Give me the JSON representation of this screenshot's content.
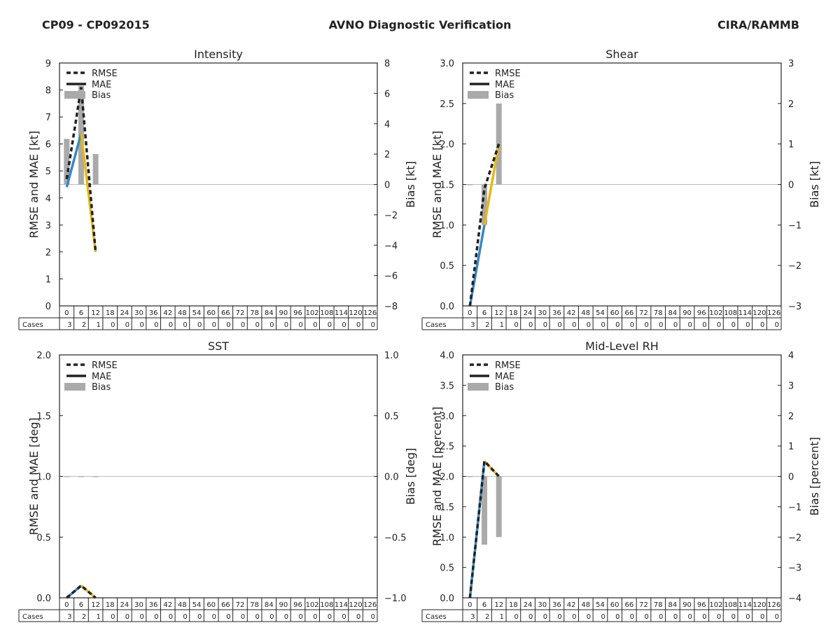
{
  "header": {
    "left": "CP09 - CP092015",
    "center": "AVNO Diagnostic Verification",
    "right": "CIRA/RAMMB"
  },
  "colors": {
    "rmse": "#222222",
    "mae_early": "#3a87c4",
    "mae_late": "#e3b919",
    "bias": "#aaaaaa",
    "zero_line": "#bbbbbb",
    "axis": "#222222"
  },
  "chart_data": [
    {
      "type": "line",
      "title": "Intensity",
      "ylabel": "RMSE and MAE [kt]",
      "y2label": "Bias [kt]",
      "ylim": [
        0,
        9
      ],
      "yticks": [
        "0",
        "1",
        "2",
        "3",
        "4",
        "5",
        "6",
        "7",
        "8",
        "9"
      ],
      "y2lim": [
        -8,
        8
      ],
      "y2ticks": [
        "−8",
        "−6",
        "−4",
        "−2",
        "0",
        "2",
        "4",
        "6",
        "8"
      ],
      "legend": [
        "RMSE",
        "MAE",
        "Bias"
      ],
      "legend_position": "upper-left",
      "x": [
        0,
        6,
        12
      ],
      "rmse": [
        4.7,
        8.1,
        2.0
      ],
      "mae": [
        4.4,
        6.4,
        2.0
      ],
      "bias": [
        3.0,
        6.5,
        2.0
      ],
      "hours": [
        "0",
        "6",
        "12",
        "18",
        "24",
        "30",
        "36",
        "42",
        "48",
        "54",
        "60",
        "66",
        "72",
        "78",
        "84",
        "90",
        "96",
        "102",
        "108",
        "114",
        "120",
        "126"
      ],
      "cases_label": "Cases",
      "cases": [
        "3",
        "2",
        "1",
        "0",
        "0",
        "0",
        "0",
        "0",
        "0",
        "0",
        "0",
        "0",
        "0",
        "0",
        "0",
        "0",
        "0",
        "0",
        "0",
        "0",
        "0",
        "0"
      ]
    },
    {
      "type": "line",
      "title": "Shear",
      "ylabel": "RMSE and MAE [kt]",
      "y2label": "Bias [kt]",
      "ylim": [
        0,
        3
      ],
      "yticks": [
        "0.0",
        "0.5",
        "1.0",
        "1.5",
        "2.0",
        "2.5",
        "3.0"
      ],
      "y2lim": [
        -3,
        3
      ],
      "y2ticks": [
        "−3",
        "−2",
        "−1",
        "0",
        "1",
        "2",
        "3"
      ],
      "legend": [
        "RMSE",
        "MAE",
        "Bias"
      ],
      "legend_position": "upper-left",
      "x": [
        0,
        6,
        12
      ],
      "rmse": [
        0.0,
        1.45,
        2.0
      ],
      "mae": [
        0.0,
        1.0,
        2.0
      ],
      "bias": [
        0.0,
        -1.0,
        2.0
      ],
      "hours": [
        "0",
        "6",
        "12",
        "18",
        "24",
        "30",
        "36",
        "42",
        "48",
        "54",
        "60",
        "66",
        "72",
        "78",
        "84",
        "90",
        "96",
        "102",
        "108",
        "114",
        "120",
        "126"
      ],
      "cases_label": "Cases",
      "cases": [
        "3",
        "2",
        "1",
        "0",
        "0",
        "0",
        "0",
        "0",
        "0",
        "0",
        "0",
        "0",
        "0",
        "0",
        "0",
        "0",
        "0",
        "0",
        "0",
        "0",
        "0",
        "0"
      ]
    },
    {
      "type": "line",
      "title": "SST",
      "ylabel": "RMSE and MAE [deg]",
      "y2label": "Bias [deg]",
      "ylim": [
        0,
        2
      ],
      "yticks": [
        "0.0",
        "0.5",
        "1.0",
        "1.5",
        "2.0"
      ],
      "y2lim": [
        -1,
        1
      ],
      "y2ticks": [
        "−1.0",
        "−0.5",
        "0.0",
        "0.5",
        "1.0"
      ],
      "legend": [
        "RMSE",
        "MAE",
        "Bias"
      ],
      "legend_position": "upper-left",
      "x": [
        0,
        6,
        12
      ],
      "rmse": [
        0.0,
        0.1,
        0.0
      ],
      "mae": [
        0.0,
        0.1,
        0.0
      ],
      "bias": [
        0.0,
        0.0,
        0.0
      ],
      "hours": [
        "0",
        "6",
        "12",
        "18",
        "24",
        "30",
        "36",
        "42",
        "48",
        "54",
        "60",
        "66",
        "72",
        "78",
        "84",
        "90",
        "96",
        "102",
        "108",
        "114",
        "120",
        "126"
      ],
      "cases_label": "Cases",
      "cases": [
        "3",
        "2",
        "1",
        "0",
        "0",
        "0",
        "0",
        "0",
        "0",
        "0",
        "0",
        "0",
        "0",
        "0",
        "0",
        "0",
        "0",
        "0",
        "0",
        "0",
        "0",
        "0"
      ]
    },
    {
      "type": "line",
      "title": "Mid-Level RH",
      "ylabel": "RMSE and MAE [percent]",
      "y2label": "Bias [percent]",
      "ylim": [
        0,
        4
      ],
      "yticks": [
        "0.0",
        "0.5",
        "1.0",
        "1.5",
        "2.0",
        "2.5",
        "3.0",
        "3.5",
        "4.0"
      ],
      "y2lim": [
        -4,
        4
      ],
      "y2ticks": [
        "−4",
        "−3",
        "−2",
        "−1",
        "0",
        "1",
        "2",
        "3",
        "4"
      ],
      "legend": [
        "RMSE",
        "MAE",
        "Bias"
      ],
      "legend_position": "upper-left",
      "x": [
        0,
        6,
        12
      ],
      "rmse": [
        0.0,
        2.25,
        2.0
      ],
      "mae": [
        0.0,
        2.25,
        2.0
      ],
      "bias": [
        0.0,
        -2.25,
        -2.0
      ],
      "hours": [
        "0",
        "6",
        "12",
        "18",
        "24",
        "30",
        "36",
        "42",
        "48",
        "54",
        "60",
        "66",
        "72",
        "78",
        "84",
        "90",
        "96",
        "102",
        "108",
        "114",
        "120",
        "126"
      ],
      "cases_label": "Cases",
      "cases": [
        "3",
        "2",
        "1",
        "0",
        "0",
        "0",
        "0",
        "0",
        "0",
        "0",
        "0",
        "0",
        "0",
        "0",
        "0",
        "0",
        "0",
        "0",
        "0",
        "0",
        "0",
        "0"
      ]
    }
  ]
}
